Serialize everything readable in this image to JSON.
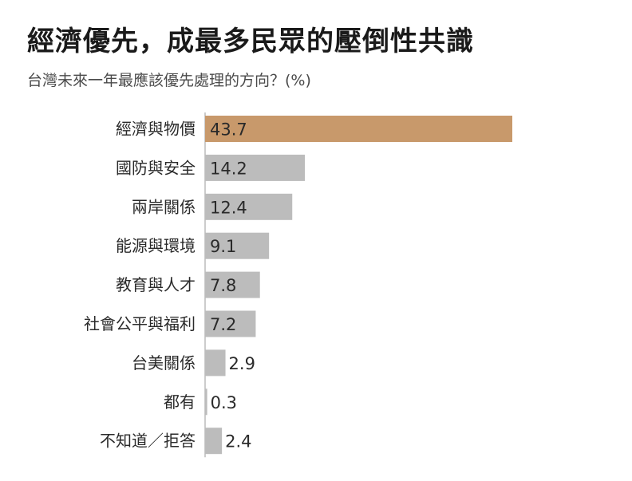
{
  "title": "經濟優先，成最多民眾的壓倒性共識",
  "subtitle": "台灣未來一年最應該優先處理的方向？(%)",
  "colors": {
    "highlight": "#c8996b",
    "bar": "#bcbcbc",
    "baseline": "#999999"
  },
  "chart_data": {
    "type": "bar",
    "orientation": "horizontal",
    "title": "經濟優先，成最多民眾的壓倒性共識",
    "subtitle": "台灣未來一年最應該優先處理的方向？(%)",
    "categories": [
      "經濟與物價",
      "國防與安全",
      "兩岸關係",
      "能源與環境",
      "教育與人才",
      "社會公平與福利",
      "台美關係",
      "都有",
      "不知道／拒答"
    ],
    "values": [
      43.7,
      14.2,
      12.4,
      9.1,
      7.8,
      7.2,
      2.9,
      0.3,
      2.4
    ],
    "value_labels": [
      "43.7",
      "14.2",
      "12.4",
      "9.1",
      "7.8",
      "7.2",
      "2.9",
      "0.3",
      "2.4"
    ],
    "highlight_index": 0,
    "xlim": [
      0,
      45
    ],
    "grid": false,
    "legend": "none"
  }
}
